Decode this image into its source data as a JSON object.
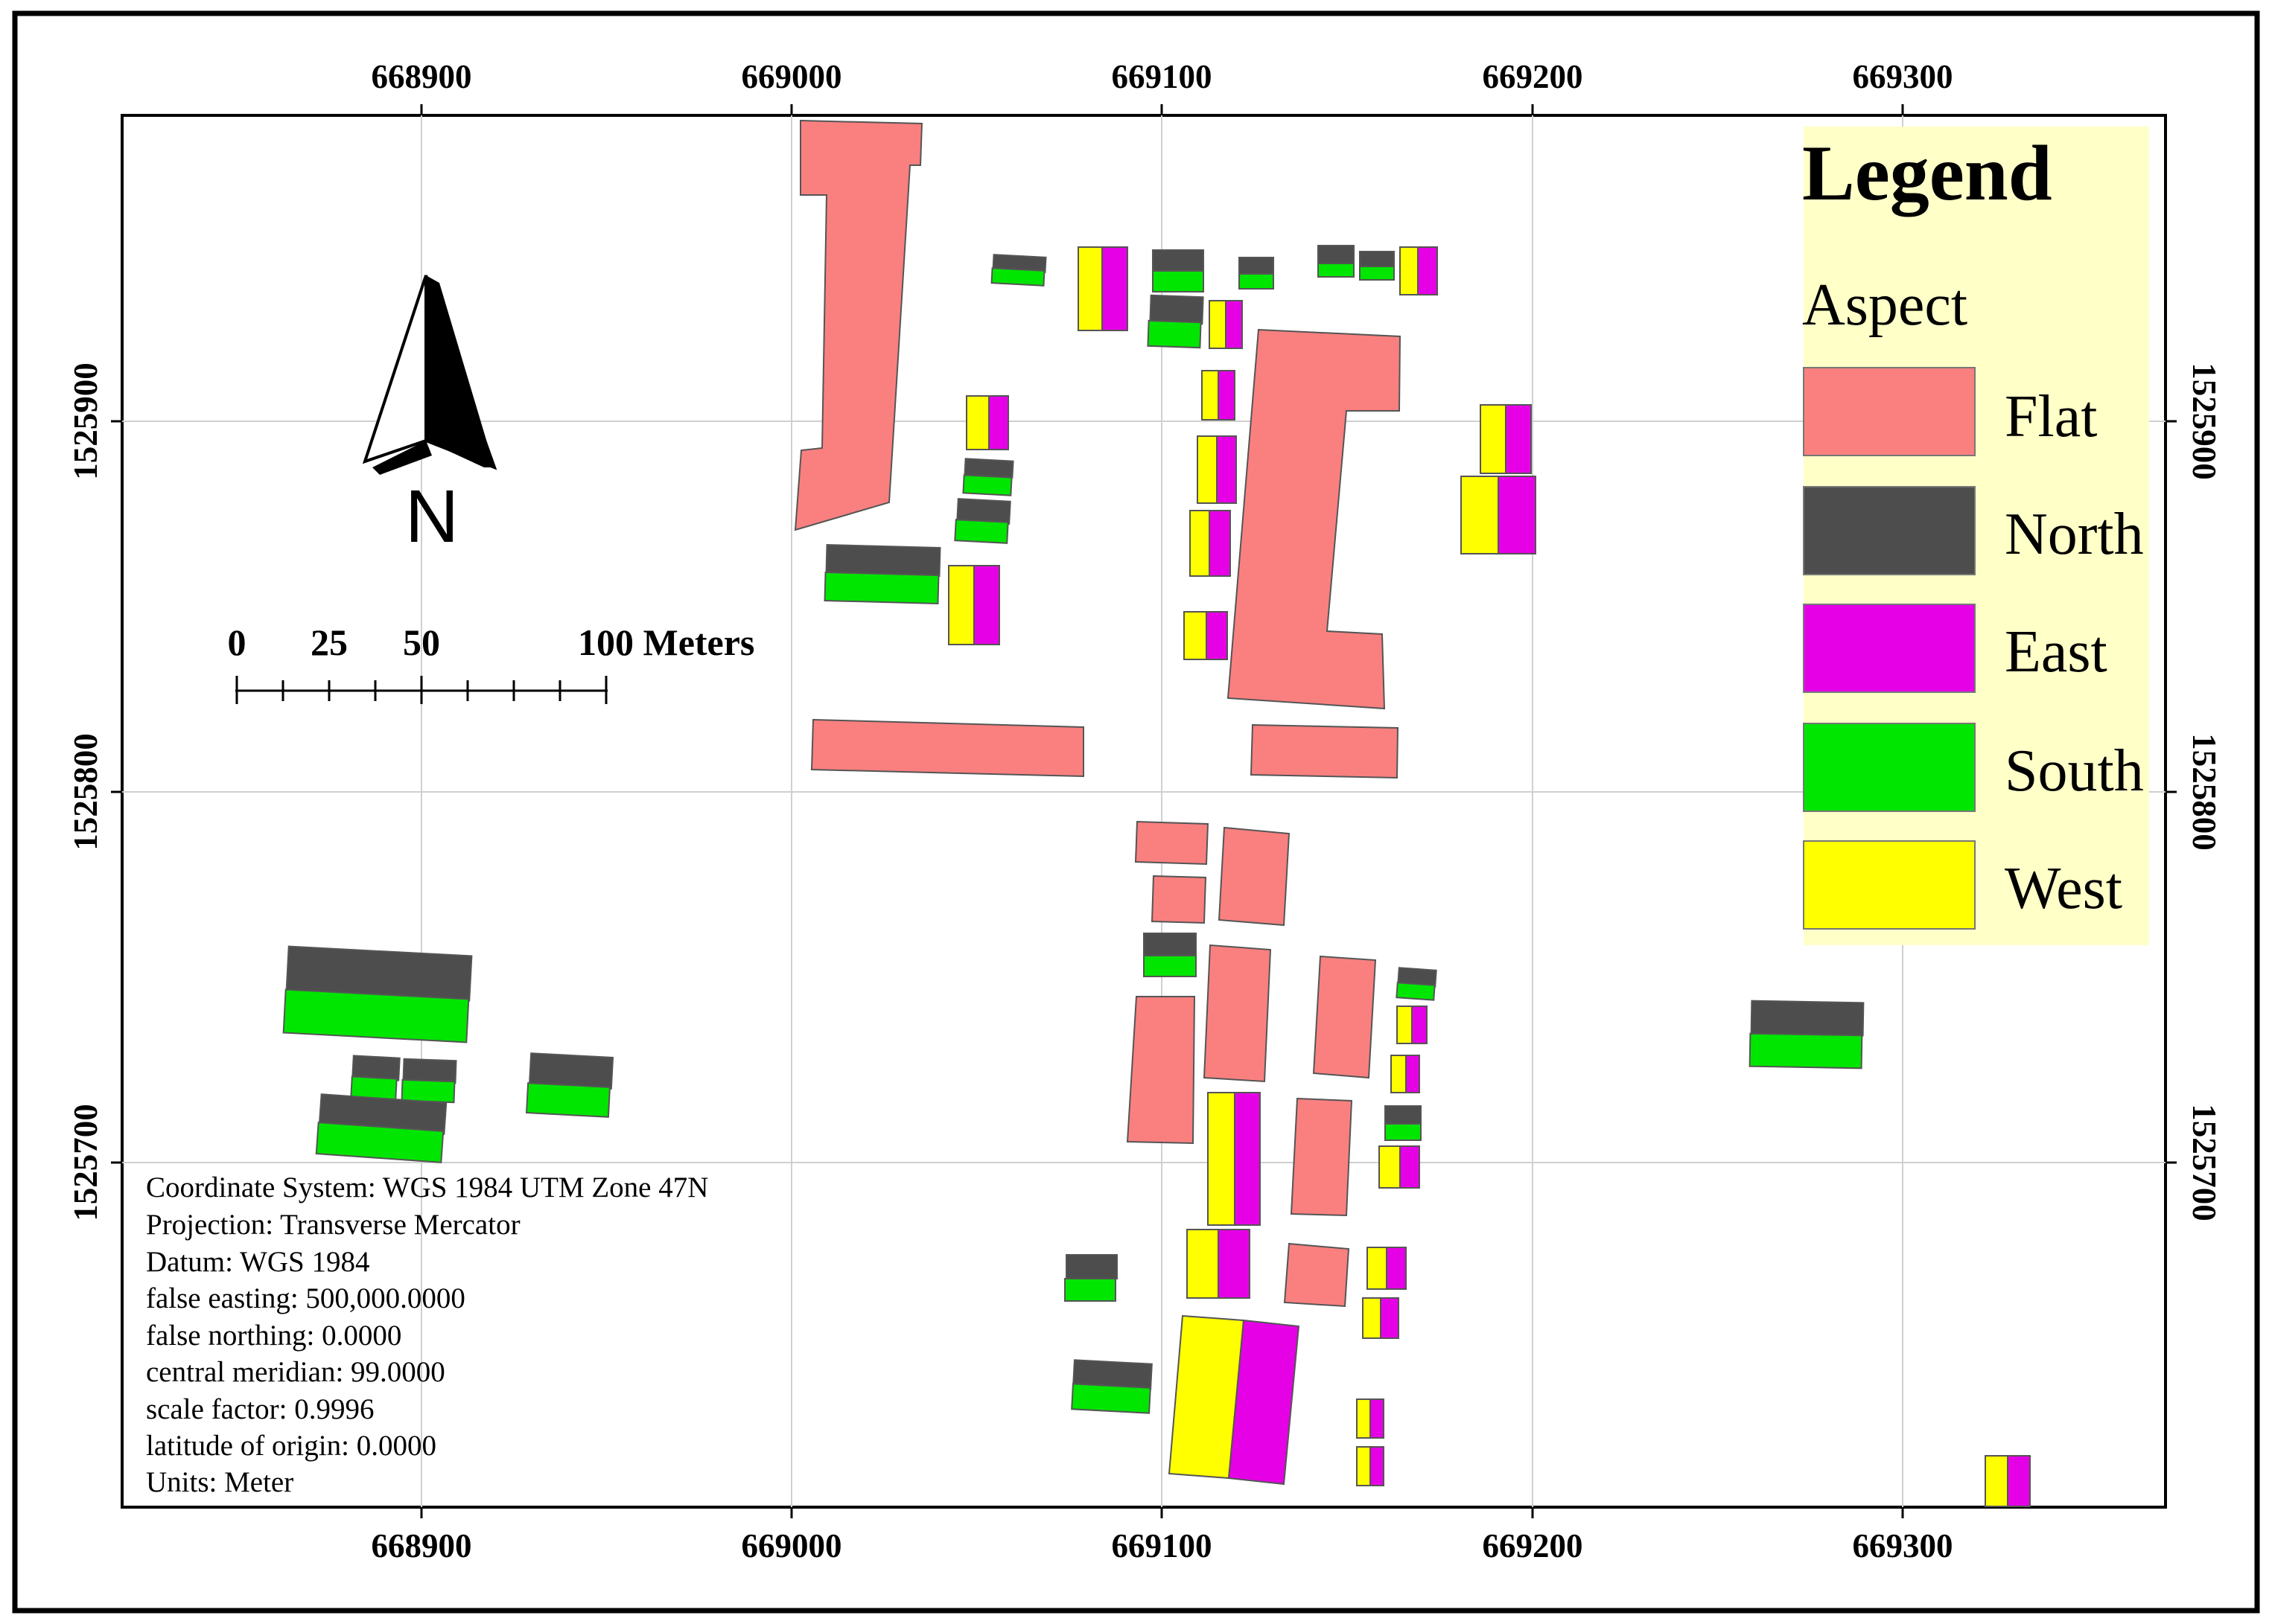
{
  "map": {
    "x_ticks": [
      "668900",
      "669000",
      "669100",
      "669200",
      "669300"
    ],
    "y_ticks": [
      "1525900",
      "1525800",
      "1525700"
    ],
    "x_tick_values": [
      668900,
      669000,
      669100,
      669200,
      669300
    ],
    "y_tick_values": [
      1525900,
      1525800,
      1525700
    ]
  },
  "legend": {
    "title": "Legend",
    "subtitle": "Aspect",
    "items": [
      {
        "label": "Flat",
        "color": "#fa8080"
      },
      {
        "label": "North",
        "color": "#4d4d4d"
      },
      {
        "label": "East",
        "color": "#e600e6"
      },
      {
        "label": "South",
        "color": "#00e600"
      },
      {
        "label": "West",
        "color": "#ffff00"
      }
    ]
  },
  "north_arrow": {
    "letter": "N"
  },
  "scale_bar": {
    "labels": [
      "0",
      "25",
      "50",
      "100 Meters"
    ]
  },
  "projection_info": [
    "Coordinate System: WGS 1984 UTM Zone 47N",
    "Projection: Transverse Mercator",
    "Datum: WGS 1984",
    "false easting: 500,000.0000",
    "false northing: 0.0000",
    "central meridian: 99.0000",
    "scale factor: 0.9996",
    "latitude of origin: 0.0000",
    "Units: Meter"
  ],
  "colors": {
    "flat": "#fa8080",
    "north": "#4d4d4d",
    "east": "#e600e6",
    "south": "#00e600",
    "west": "#ffff00",
    "legend_bg": "#ffffc8"
  }
}
